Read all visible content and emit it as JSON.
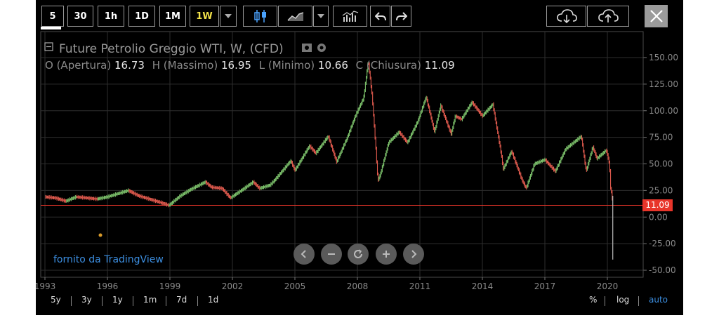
{
  "toolbar": {
    "intervals": [
      {
        "label": "5",
        "active": false
      },
      {
        "label": "30",
        "active": false
      },
      {
        "label": "1h",
        "active": false
      },
      {
        "label": "1D",
        "active": false
      },
      {
        "label": "1M",
        "active": false
      },
      {
        "label": "1W",
        "active": true
      }
    ],
    "icons": [
      "chevron-down-icon",
      "candlestick-icon",
      "area-chart-icon",
      "chevron-down-icon",
      "indicators-icon",
      "undo-icon",
      "redo-icon",
      "cloud-download-icon",
      "cloud-upload-icon",
      "close-icon"
    ]
  },
  "legend": {
    "title": "Future Petrolio Greggio WTI, W, (CFD)",
    "ohlc": [
      {
        "label": "O (Apertura)",
        "value": "16.73"
      },
      {
        "label": "H (Massimo)",
        "value": "16.95"
      },
      {
        "label": "L (Minimo)",
        "value": "10.66"
      },
      {
        "label": "C (Chiusura)",
        "value": "11.09"
      }
    ]
  },
  "credit": "fornito da TradingView",
  "bottom_ranges": [
    "5y",
    "3y",
    "1y",
    "1m",
    "7d",
    "1d"
  ],
  "bottom_right": [
    "%",
    "log",
    "auto"
  ],
  "colors": {
    "up": "#7bbf6a",
    "down": "#e05a4e",
    "price_line": "#e8352a",
    "credit": "#3c8ee0",
    "active": "#f2e24a"
  },
  "chart_data": {
    "type": "line",
    "title": "Future Petrolio Greggio WTI, W, (CFD)",
    "x_ticks": [
      "1993",
      "1996",
      "1999",
      "2002",
      "2005",
      "2008",
      "2011",
      "2014",
      "2017",
      "2020"
    ],
    "y_ticks": [
      "150.00",
      "125.00",
      "100.00",
      "75.00",
      "50.00",
      "25.00",
      "0.00",
      "-25.00",
      "-50.00"
    ],
    "ylim": [
      -50,
      150
    ],
    "xlim": [
      1993,
      2020.9
    ],
    "last_price": "11.09",
    "last_value": 11.09,
    "series": [
      {
        "values": [
          [
            1993.0,
            19
          ],
          [
            1993.5,
            18
          ],
          [
            1994.0,
            15
          ],
          [
            1994.5,
            19
          ],
          [
            1995.0,
            18
          ],
          [
            1995.5,
            17
          ],
          [
            1996.0,
            19
          ],
          [
            1996.5,
            22
          ],
          [
            1997.0,
            25
          ],
          [
            1997.5,
            20
          ],
          [
            1998.0,
            17
          ],
          [
            1998.5,
            14
          ],
          [
            1998.95,
            11
          ],
          [
            1999.5,
            20
          ],
          [
            2000.0,
            26
          ],
          [
            2000.7,
            33
          ],
          [
            2001.0,
            28
          ],
          [
            2001.5,
            27
          ],
          [
            2001.9,
            18
          ],
          [
            2002.5,
            26
          ],
          [
            2003.0,
            33
          ],
          [
            2003.3,
            27
          ],
          [
            2003.8,
            30
          ],
          [
            2004.0,
            34
          ],
          [
            2004.8,
            53
          ],
          [
            2005.0,
            44
          ],
          [
            2005.7,
            67
          ],
          [
            2006.0,
            60
          ],
          [
            2006.6,
            76
          ],
          [
            2007.0,
            52
          ],
          [
            2007.5,
            74
          ],
          [
            2007.9,
            95
          ],
          [
            2008.3,
            112
          ],
          [
            2008.52,
            147
          ],
          [
            2008.7,
            115
          ],
          [
            2008.9,
            60
          ],
          [
            2008.98,
            34
          ],
          [
            2009.1,
            40
          ],
          [
            2009.5,
            70
          ],
          [
            2010.0,
            80
          ],
          [
            2010.4,
            70
          ],
          [
            2010.9,
            90
          ],
          [
            2011.3,
            113
          ],
          [
            2011.7,
            80
          ],
          [
            2012.0,
            105
          ],
          [
            2012.5,
            78
          ],
          [
            2012.7,
            95
          ],
          [
            2013.0,
            92
          ],
          [
            2013.5,
            108
          ],
          [
            2014.0,
            95
          ],
          [
            2014.5,
            106
          ],
          [
            2014.9,
            60
          ],
          [
            2015.0,
            45
          ],
          [
            2015.4,
            62
          ],
          [
            2015.9,
            35
          ],
          [
            2016.1,
            27
          ],
          [
            2016.5,
            50
          ],
          [
            2017.0,
            54
          ],
          [
            2017.5,
            43
          ],
          [
            2017.9,
            60
          ],
          [
            2018.0,
            64
          ],
          [
            2018.75,
            76
          ],
          [
            2018.98,
            43
          ],
          [
            2019.3,
            66
          ],
          [
            2019.5,
            55
          ],
          [
            2019.95,
            63
          ],
          [
            2020.1,
            50
          ],
          [
            2020.15,
            28
          ],
          [
            2020.22,
            20
          ],
          [
            2020.26,
            11.09
          ]
        ]
      }
    ]
  }
}
